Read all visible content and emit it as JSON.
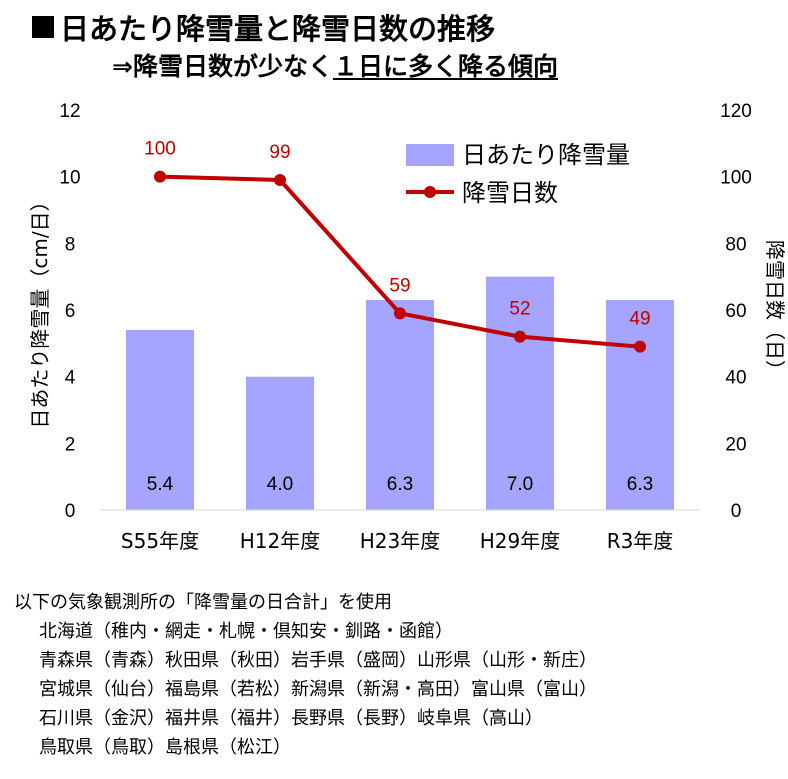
{
  "title": "日あたり降雪量と降雪日数の推移",
  "subtitle_prefix": "⇒降雪日数が少なく",
  "subtitle_underlined": "１日に多く降る傾向",
  "chart_data": {
    "type": "bar+line",
    "categories": [
      "S55年度",
      "H12年度",
      "H23年度",
      "H29年度",
      "R3年度"
    ],
    "series": [
      {
        "name": "日あたり降雪量",
        "type": "bar",
        "axis": "left",
        "values": [
          5.4,
          4.0,
          6.3,
          7.0,
          6.3
        ],
        "labels": [
          "5.4",
          "4.0",
          "6.3",
          "7.0",
          "6.3"
        ],
        "color": "#a5a5ff"
      },
      {
        "name": "降雪日数",
        "type": "line",
        "axis": "right",
        "values": [
          100,
          99,
          59,
          52,
          49
        ],
        "labels": [
          "100",
          "99",
          "59",
          "52",
          "49"
        ],
        "color": "#c00000"
      }
    ],
    "y_left": {
      "label": "日あたり降雪量（cm/日）",
      "ylim": [
        0,
        12
      ],
      "ticks": [
        "0",
        "2",
        "4",
        "6",
        "8",
        "10",
        "12"
      ]
    },
    "y_right": {
      "label": "降雪日数（日）",
      "ylim": [
        0,
        120
      ],
      "ticks": [
        "0",
        "20",
        "40",
        "60",
        "80",
        "100",
        "120"
      ]
    },
    "legend_position": "top-right",
    "grid": false
  },
  "notes": {
    "lead": "以下の気象観測所の「降雪量の日合計」を使用",
    "lines": [
      "北海道（稚内・網走・札幌・倶知安・釧路・函館）",
      "青森県（青森）秋田県（秋田）岩手県（盛岡）山形県（山形・新庄）",
      "宮城県（仙台）福島県（若松）新潟県（新潟・高田）富山県（富山）",
      "石川県（金沢）福井県（福井）長野県（長野）岐阜県（高山）",
      "鳥取県（鳥取）島根県（松江）"
    ]
  }
}
